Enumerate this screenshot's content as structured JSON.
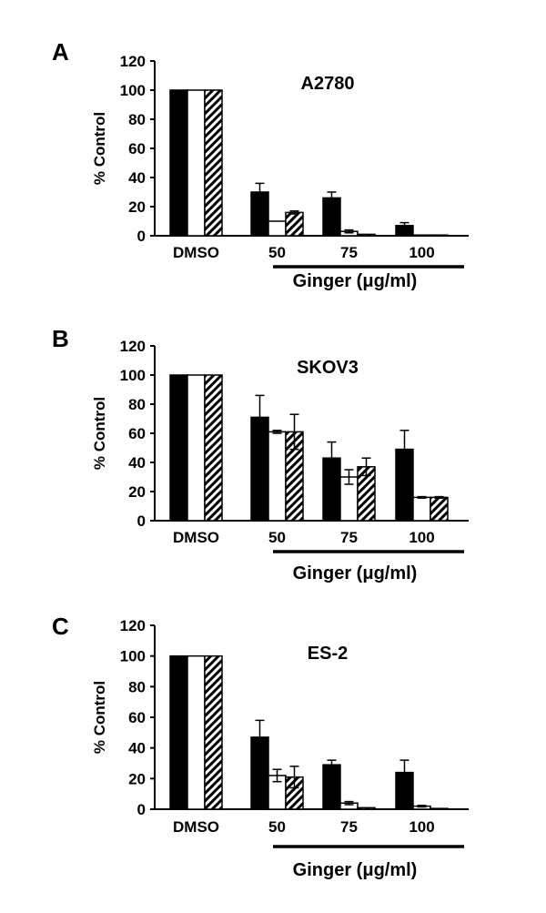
{
  "figure": {
    "xlabel": "Ginger (μg/ml)",
    "patterns": [
      "solid",
      "open",
      "hatched"
    ]
  },
  "chart_data": [
    {
      "type": "bar",
      "panel": "A",
      "title": "A2780",
      "ylabel": "% Control",
      "xlabel": "Ginger (μg/ml)",
      "ylim": [
        0,
        120
      ],
      "yticks": [
        0,
        20,
        40,
        60,
        80,
        100,
        120
      ],
      "categories": [
        "DMSO",
        "50",
        "75",
        "100"
      ],
      "series": [
        {
          "values": [
            100,
            30,
            26,
            7
          ],
          "errors": [
            0,
            6,
            4,
            2
          ]
        },
        {
          "values": [
            100,
            10,
            3,
            0.5
          ],
          "errors": [
            0,
            0,
            1,
            0
          ]
        },
        {
          "values": [
            100,
            16,
            1,
            0.5
          ],
          "errors": [
            0,
            1,
            0,
            0
          ]
        }
      ]
    },
    {
      "type": "bar",
      "panel": "B",
      "title": "SKOV3",
      "ylabel": "% Control",
      "xlabel": "Ginger (μg/ml)",
      "ylim": [
        0,
        120
      ],
      "yticks": [
        0,
        20,
        40,
        60,
        80,
        100,
        120
      ],
      "categories": [
        "DMSO",
        "50",
        "75",
        "100"
      ],
      "series": [
        {
          "values": [
            100,
            71,
            43,
            49
          ],
          "errors": [
            0,
            15,
            11,
            13
          ]
        },
        {
          "values": [
            100,
            61,
            30,
            16
          ],
          "errors": [
            0,
            1,
            5,
            0.5
          ]
        },
        {
          "values": [
            100,
            61,
            37,
            16
          ],
          "errors": [
            0,
            12,
            6,
            0.5
          ]
        }
      ]
    },
    {
      "type": "bar",
      "panel": "C",
      "title": "ES-2",
      "ylabel": "% Control",
      "xlabel": "Ginger (μg/ml)",
      "ylim": [
        0,
        120
      ],
      "yticks": [
        0,
        20,
        40,
        60,
        80,
        100,
        120
      ],
      "categories": [
        "DMSO",
        "50",
        "75",
        "100"
      ],
      "series": [
        {
          "values": [
            100,
            47,
            29,
            24
          ],
          "errors": [
            0,
            11,
            3,
            8
          ]
        },
        {
          "values": [
            100,
            22,
            4,
            2
          ],
          "errors": [
            0,
            4,
            1,
            0.5
          ]
        },
        {
          "values": [
            100,
            21,
            1,
            0.5
          ],
          "errors": [
            0,
            7,
            0,
            0
          ]
        }
      ]
    }
  ]
}
